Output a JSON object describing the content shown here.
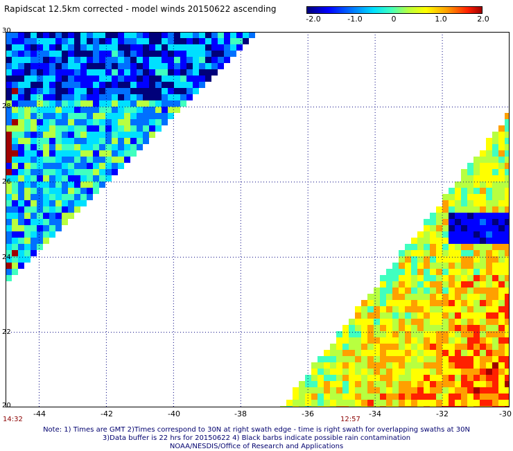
{
  "title": "Rapidscat 12.5km corrected - model winds 20150622 ascending",
  "colorbar": {
    "labels": [
      "-2.0",
      "-1.0",
      "0",
      "1.0",
      "2.0"
    ],
    "label_values": [
      -2.0,
      -1.0,
      0,
      1.0,
      2.0
    ],
    "colors": [
      "#00007a",
      "#0000ff",
      "#0070ff",
      "#00e0ff",
      "#40ffc0",
      "#b8ff40",
      "#ffff00",
      "#ffa000",
      "#ff2000",
      "#a00000"
    ]
  },
  "map": {
    "lon_range": [
      -45,
      -30
    ],
    "lat_range": [
      20,
      30
    ],
    "lon_ticks": [
      "-44",
      "-42",
      "-40",
      "-38",
      "-36",
      "-34",
      "-32",
      "-30"
    ],
    "lat_ticks": [
      "30",
      "28",
      "26",
      "24",
      "22",
      "20"
    ],
    "grid_color": "#000080",
    "swaths": [
      {
        "name": "left",
        "time": "14:32",
        "description_color_range": "mostly blue/cyan/green"
      },
      {
        "name": "right",
        "time": "12:57",
        "description_color_range": "mostly green/yellow/orange"
      }
    ]
  },
  "note": {
    "line1": "Note: 1) Times are GMT 2)Times correspond to 30N at right swath edge - time is right swath for overlapping swaths at 30N",
    "line2": "3)Data buffer is 22 hrs for 20150622 4) Black barbs indicate possible rain contamination",
    "line3": "NOAA/NESDIS/Office of Research and Applications"
  }
}
